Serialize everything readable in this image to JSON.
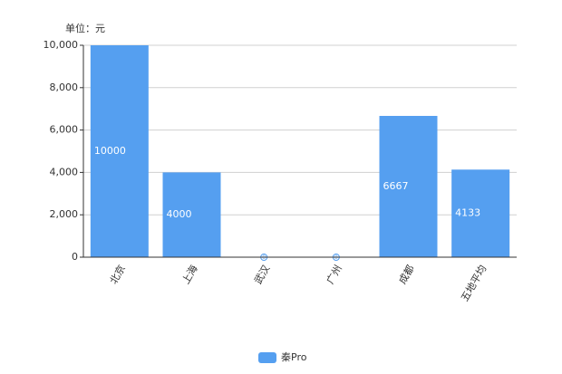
{
  "chart_data": {
    "type": "bar",
    "y_unit": "单位：元",
    "categories": [
      "北京",
      "上海",
      "武汉",
      "广州",
      "成都",
      "五地平均"
    ],
    "series": [
      {
        "name": "秦Pro",
        "color": "#559ff0",
        "values": [
          10000,
          4000,
          0,
          0,
          6667,
          4133
        ]
      }
    ],
    "ylim": [
      0,
      10000
    ],
    "yticks": [
      0,
      {
        "value": 2000,
        "label": "2,000"
      },
      {
        "value": 4000,
        "label": "4,000"
      },
      {
        "value": 6000,
        "label": "6,000"
      },
      {
        "value": 8000,
        "label": "8,000"
      },
      {
        "value": 10000,
        "label": "10,000"
      }
    ],
    "grid": true,
    "legend": "bottom"
  }
}
